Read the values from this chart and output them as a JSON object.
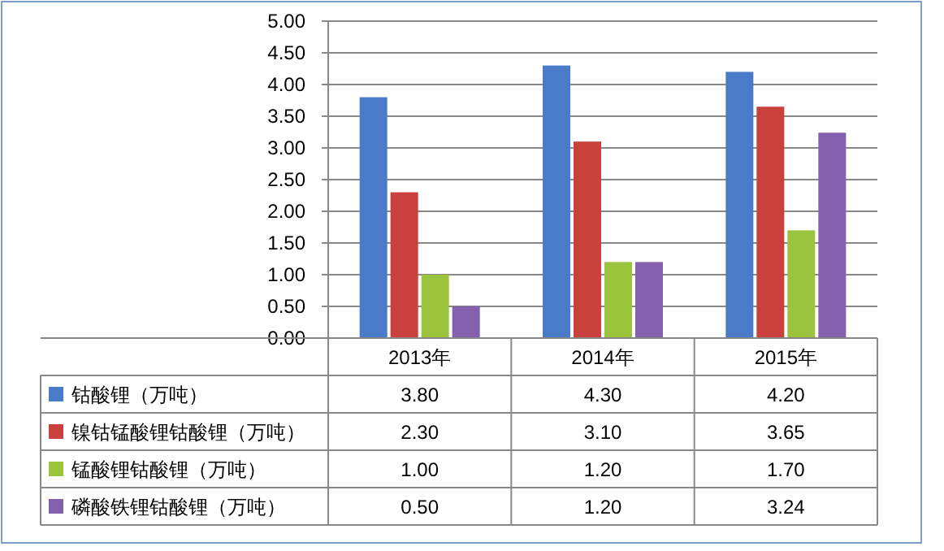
{
  "chart_data": {
    "type": "bar",
    "categories": [
      "2013年",
      "2014年",
      "2015年"
    ],
    "series": [
      {
        "name": "钴酸锂（万吨）",
        "color": "#4a7bc8",
        "values": [
          3.8,
          4.3,
          4.2
        ],
        "value_labels": [
          "3.80",
          "4.30",
          "4.20"
        ]
      },
      {
        "name": "镍钴锰酸锂钴酸锂（万吨）",
        "color": "#c9403c",
        "values": [
          2.3,
          3.1,
          3.65
        ],
        "value_labels": [
          "2.30",
          "3.10",
          "3.65"
        ]
      },
      {
        "name": "锰酸锂钴酸锂（万吨）",
        "color": "#9bc43c",
        "values": [
          1.0,
          1.2,
          1.7
        ],
        "value_labels": [
          "1.00",
          "1.20",
          "1.70"
        ]
      },
      {
        "name": "磷酸铁锂钴酸锂（万吨）",
        "color": "#8460ae",
        "values": [
          0.5,
          1.2,
          3.24
        ],
        "value_labels": [
          "0.50",
          "1.20",
          "3.24"
        ]
      }
    ],
    "ylim": [
      0,
      5
    ],
    "yticks": [
      {
        "value": 0,
        "label": "0.00"
      },
      {
        "value": 0.5,
        "label": "0.50"
      },
      {
        "value": 1,
        "label": "1.00"
      },
      {
        "value": 1.5,
        "label": "1.50"
      },
      {
        "value": 2,
        "label": "2.00"
      },
      {
        "value": 2.5,
        "label": "2.50"
      },
      {
        "value": 3,
        "label": "3.00"
      },
      {
        "value": 3.5,
        "label": "3.50"
      },
      {
        "value": 4,
        "label": "4.00"
      },
      {
        "value": 4.5,
        "label": "4.50"
      },
      {
        "value": 5,
        "label": "5.00"
      }
    ],
    "grid": "y",
    "legend": "bottom"
  }
}
